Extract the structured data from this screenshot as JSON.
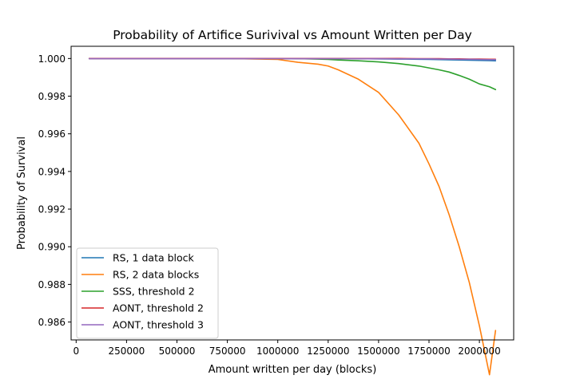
{
  "chart_data": {
    "type": "line",
    "title": "Probability of Artifice Surivival vs Amount Written per Day",
    "xlabel": "Amount written per day (blocks)",
    "ylabel": "Probability of Survival",
    "xlim": [
      -25000,
      2170000
    ],
    "ylim": [
      0.98505,
      1.00065
    ],
    "xticks": [
      0,
      250000,
      500000,
      750000,
      1000000,
      1250000,
      1500000,
      1750000,
      2000000
    ],
    "xtick_labels": [
      "0",
      "250000",
      "500000",
      "750000",
      "1000000",
      "1250000",
      "1500000",
      "1750000",
      "2000000"
    ],
    "yticks": [
      0.986,
      0.988,
      0.99,
      0.992,
      0.994,
      0.996,
      0.998,
      1.0
    ],
    "ytick_labels": [
      "0.986",
      "0.988",
      "0.990",
      "0.992",
      "0.994",
      "0.996",
      "0.998",
      "1.000"
    ],
    "grid": false,
    "legend_position": "lower-left",
    "x": [
      65000,
      250000,
      500000,
      750000,
      1000000,
      1100000,
      1200000,
      1250000,
      1300000,
      1400000,
      1500000,
      1600000,
      1700000,
      1750000,
      1800000,
      1850000,
      1900000,
      1950000,
      2000000,
      2050000,
      2080000
    ],
    "series": [
      {
        "name": "RS, 1 data block",
        "color": "#1f77b4",
        "values": [
          1.0,
          1.0,
          1.0,
          1.0,
          1.0,
          1.0,
          1.0,
          1.0,
          1.0,
          0.99999,
          0.99998,
          0.99997,
          0.99996,
          0.99995,
          0.99994,
          0.99993,
          0.99992,
          0.99991,
          0.9999,
          0.99989,
          0.99988
        ]
      },
      {
        "name": "RS, 2 data blocks",
        "color": "#ff7f0e",
        "values": [
          1.0,
          1.0,
          1.0,
          1.0,
          0.99995,
          0.9998,
          0.9997,
          0.9996,
          0.9994,
          0.9989,
          0.9982,
          0.997,
          0.9955,
          0.9944,
          0.9932,
          0.9917,
          0.99,
          0.9881,
          0.9858,
          0.9832,
          0.98555
        ]
      },
      {
        "name": "SSS, threshold 2",
        "color": "#2ca02c",
        "values": [
          1.0,
          1.0,
          1.0,
          1.0,
          1.0,
          0.99999,
          0.99997,
          0.99995,
          0.99992,
          0.99988,
          0.99982,
          0.99973,
          0.9996,
          0.9995,
          0.9994,
          0.99928,
          0.9991,
          0.9989,
          0.99865,
          0.9985,
          0.99835
        ]
      },
      {
        "name": "AONT, threshold 2",
        "color": "#d62728",
        "values": [
          1.0,
          1.0,
          1.0,
          1.0,
          1.0,
          1.0,
          1.0,
          1.0,
          1.0,
          1.0,
          1.0,
          1.0,
          0.99999,
          0.99999,
          0.99999,
          0.99998,
          0.99998,
          0.99997,
          0.99997,
          0.99996,
          0.99996
        ]
      },
      {
        "name": "AONT, threshold 3",
        "color": "#9467bd",
        "values": [
          0.99999,
          0.99999,
          0.99999,
          0.99999,
          0.99999,
          0.99999,
          0.99999,
          0.99999,
          0.99999,
          0.99999,
          0.99999,
          0.99998,
          0.99998,
          0.99998,
          0.99997,
          0.99997,
          0.99996,
          0.99996,
          0.99995,
          0.99994,
          0.99994
        ]
      }
    ]
  }
}
